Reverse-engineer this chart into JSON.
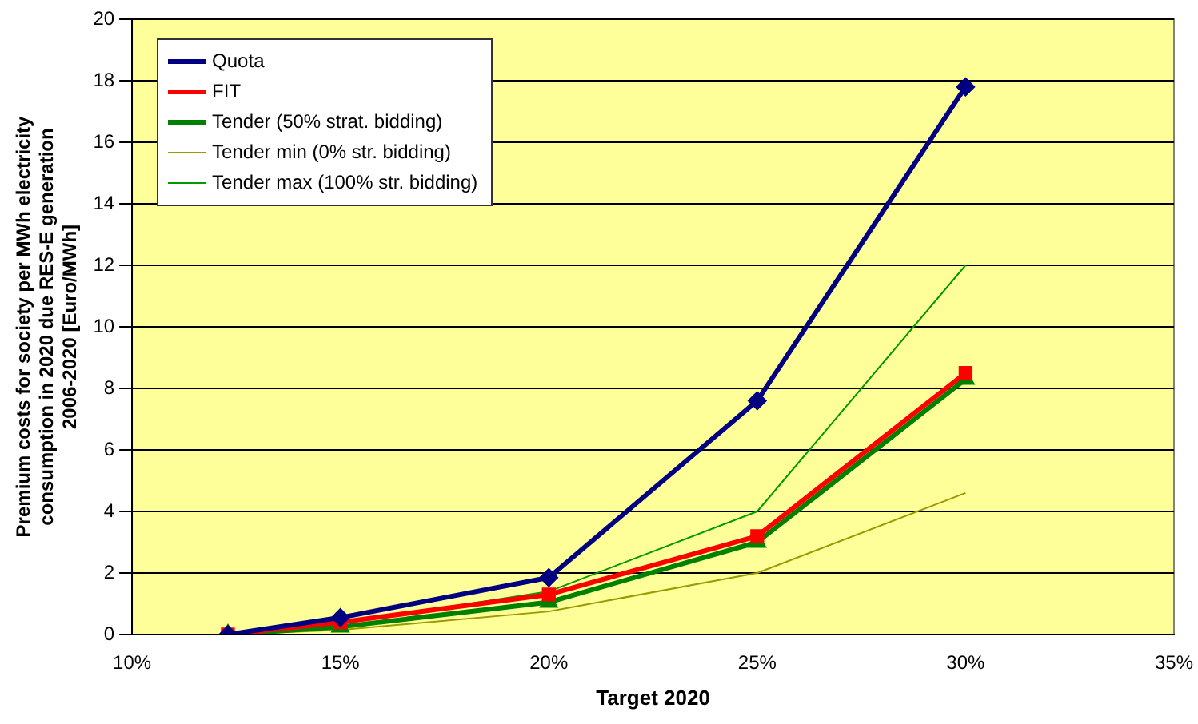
{
  "chart_data": {
    "type": "line",
    "xlabel": "Target 2020",
    "ylabel": "Premium costs for society per MWh electricity\nconsumption in 2020 due RES-E generation\n2006-2020 [Euro/MWh]",
    "x": [
      12.3,
      15,
      20,
      25,
      30
    ],
    "series": [
      {
        "name": "Quota",
        "color": "#000080",
        "marker": "diamond",
        "values": [
          0,
          0.55,
          1.85,
          7.6,
          17.8
        ]
      },
      {
        "name": "FIT",
        "color": "#ff0000",
        "marker": "square",
        "values": [
          0,
          0.4,
          1.3,
          3.2,
          8.5
        ]
      },
      {
        "name": "Tender (50% strat. bidding)",
        "color": "#008000",
        "marker": "triangle",
        "values": [
          0,
          0.25,
          1.05,
          3.0,
          8.3
        ]
      },
      {
        "name": "Tender min (0% str. bidding)",
        "color": "#999900",
        "marker": "none",
        "values": [
          0,
          0.15,
          0.75,
          2.0,
          4.6
        ]
      },
      {
        "name": "Tender max (100% str. bidding)",
        "color": "#009900",
        "marker": "none",
        "values": [
          0,
          0.35,
          1.4,
          4.0,
          12.0
        ]
      }
    ],
    "xlim": [
      10,
      35
    ],
    "xticks": [
      {
        "value": 10,
        "label": "10%"
      },
      {
        "value": 15,
        "label": "15%"
      },
      {
        "value": 20,
        "label": "20%"
      },
      {
        "value": 25,
        "label": "25%"
      },
      {
        "value": 30,
        "label": "30%"
      },
      {
        "value": 35,
        "label": "35%"
      }
    ],
    "ylim": [
      0,
      20
    ],
    "yticks": [
      0,
      2,
      4,
      6,
      8,
      10,
      12,
      14,
      16,
      18,
      20
    ],
    "grid": "y",
    "legend": "top left"
  }
}
